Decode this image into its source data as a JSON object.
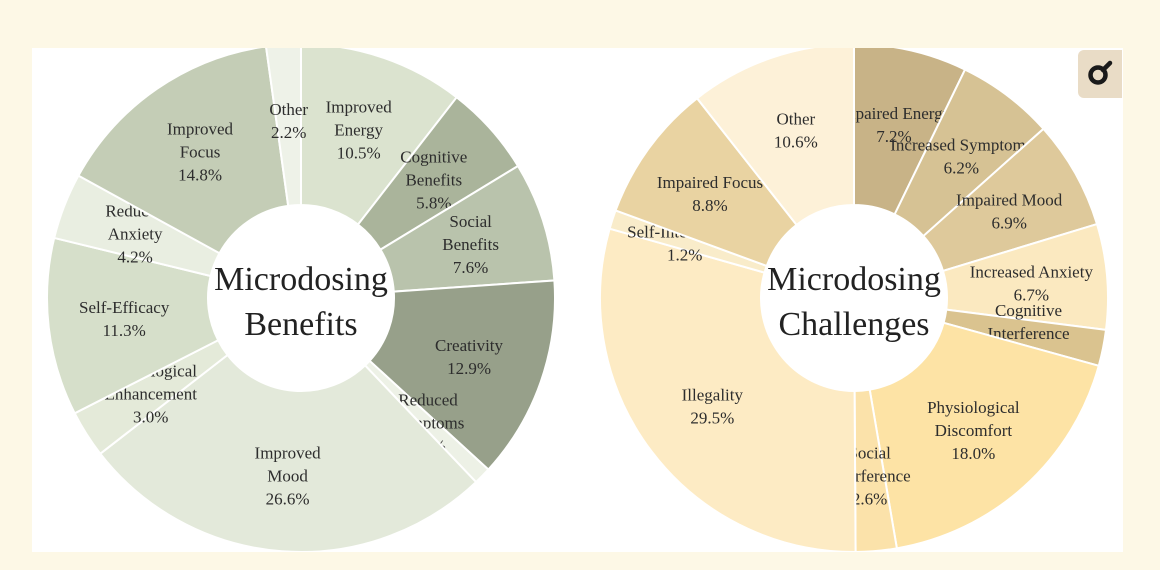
{
  "chart_data": [
    {
      "type": "pie",
      "donut": true,
      "title_lines": [
        "Microdosing",
        "Benefits"
      ],
      "slices": [
        {
          "label": [
            "Improved",
            "Energy"
          ],
          "value": 10.5,
          "display": "10.5%",
          "color": "#dbe3cf"
        },
        {
          "label": [
            "Cognitive",
            "Benefits"
          ],
          "value": 5.8,
          "display": "5.8%",
          "color": "#aab49b"
        },
        {
          "label": [
            "Social",
            "Benefits"
          ],
          "value": 7.6,
          "display": "7.6%",
          "color": "#b9c3ac"
        },
        {
          "label": [
            "Creativity"
          ],
          "value": 12.9,
          "display": "12.9%",
          "color": "#97a08a"
        },
        {
          "label": [
            "Reduced",
            "Symptoms"
          ],
          "value": 1.1,
          "display": "1.1%",
          "color": "#edf1e6"
        },
        {
          "label": [
            "Improved",
            "Mood"
          ],
          "value": 26.6,
          "display": "26.6%",
          "color": "#e3e9da"
        },
        {
          "label": [
            "Physiological",
            "Enhancement"
          ],
          "value": 3.0,
          "display": "3.0%",
          "color": "#e4ead9"
        },
        {
          "label": [
            "Self-Efficacy"
          ],
          "value": 11.3,
          "display": "11.3%",
          "color": "#d6dfca"
        },
        {
          "label": [
            "Reduced",
            "Anxiety"
          ],
          "value": 4.2,
          "display": "4.2%",
          "color": "#e9eee1"
        },
        {
          "label": [
            "Improved",
            "Focus"
          ],
          "value": 14.8,
          "display": "14.8%",
          "color": "#c4cdb6"
        },
        {
          "label": [
            "Other"
          ],
          "value": 2.2,
          "display": "2.2%",
          "color": "#eef2e8"
        }
      ]
    },
    {
      "type": "pie",
      "donut": true,
      "title_lines": [
        "Microdosing",
        "Challenges"
      ],
      "slices": [
        {
          "label": [
            "Impaired Energy"
          ],
          "value": 7.2,
          "display": "7.2%",
          "color": "#c8b387"
        },
        {
          "label": [
            "Increased Symptoms"
          ],
          "value": 6.2,
          "display": "6.2%",
          "color": "#d6c294"
        },
        {
          "label": [
            "Impaired Mood"
          ],
          "value": 6.9,
          "display": "6.9%",
          "color": "#dec99b"
        },
        {
          "label": [
            "Increased Anxiety"
          ],
          "value": 6.7,
          "display": "6.7%",
          "color": "#fbe9c0"
        },
        {
          "label": [
            "Cognitive",
            "Interference"
          ],
          "value": 2.3,
          "display": "2.3%",
          "color": "#dac38f"
        },
        {
          "label": [
            "Physiological",
            "Discomfort"
          ],
          "value": 18.0,
          "display": "18.0%",
          "color": "#fde3a5"
        },
        {
          "label": [
            "Social",
            "Interference"
          ],
          "value": 2.6,
          "display": "2.6%",
          "color": "#fbe2aa"
        },
        {
          "label": [
            "Illegality"
          ],
          "value": 29.5,
          "display": "29.5%",
          "color": "#fdebc4"
        },
        {
          "label": [
            "Self-Interference"
          ],
          "value": 1.2,
          "display": "1.2%",
          "color": "#f9ecca"
        },
        {
          "label": [
            "Impaired Focus"
          ],
          "value": 8.8,
          "display": "8.8%",
          "color": "#e9d3a2"
        },
        {
          "label": [
            "Other"
          ],
          "value": 10.6,
          "display": "10.6%",
          "color": "#fdf1d8"
        }
      ]
    }
  ],
  "toolbar": {
    "icon": "magnifier-icon"
  }
}
